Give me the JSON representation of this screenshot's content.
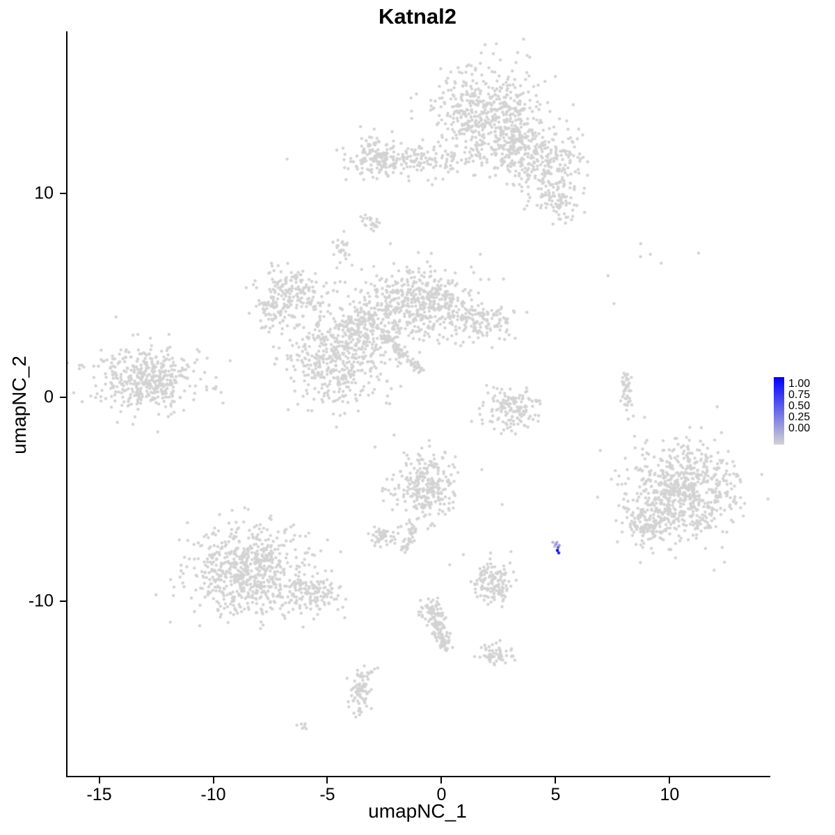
{
  "chart_data": {
    "type": "scatter",
    "title": "Katnal2",
    "xlabel": "umapNC_1",
    "ylabel": "umapNC_2",
    "x_ticks": [
      -15,
      -10,
      -5,
      0,
      5,
      10
    ],
    "y_ticks": [
      10,
      0,
      -10
    ],
    "x_range": [
      -16.45,
      14.35
    ],
    "y_range": [
      -18.55,
      17.95
    ],
    "grid": false,
    "legend_position": "right",
    "point_color_low": "#D3D3D3",
    "point_color_high": "#0000FF",
    "point_radius_px": 2.2,
    "legend": {
      "ticks": [
        "1.00",
        "0.75",
        "0.50",
        "0.25",
        "0.00"
      ]
    },
    "background_clusters": [
      {
        "cx": 1.9,
        "cy": 13.9,
        "sx": 1.15,
        "sy": 1.2,
        "n": 520
      },
      {
        "cx": 3.2,
        "cy": 12.3,
        "sx": 0.7,
        "sy": 0.8,
        "n": 150
      },
      {
        "cx": 4.7,
        "cy": 11.4,
        "sx": 0.75,
        "sy": 0.9,
        "n": 200
      },
      {
        "cx": 5.0,
        "cy": 9.7,
        "sx": 0.45,
        "sy": 0.55,
        "n": 70
      },
      {
        "cx": -1.5,
        "cy": 11.6,
        "sx": 1.5,
        "sy": 0.38,
        "n": 170
      },
      {
        "cx": -2.9,
        "cy": 11.9,
        "sx": 0.45,
        "sy": 0.45,
        "n": 90
      },
      {
        "cx": -3.1,
        "cy": 8.6,
        "sx": 0.25,
        "sy": 0.25,
        "n": 22
      },
      {
        "cx": -4.4,
        "cy": 7.4,
        "sx": 0.25,
        "sy": 0.3,
        "n": 25
      },
      {
        "cx": -0.9,
        "cy": 4.7,
        "sx": 1.05,
        "sy": 0.85,
        "n": 430
      },
      {
        "cx": 1.7,
        "cy": 3.7,
        "sx": 0.75,
        "sy": 0.45,
        "n": 130
      },
      {
        "cx": -6.5,
        "cy": 5.1,
        "sx": 0.7,
        "sy": 0.7,
        "n": 170
      },
      {
        "cx": -7.6,
        "cy": 4.2,
        "sx": 0.4,
        "sy": 0.5,
        "n": 60
      },
      {
        "cx": -3.2,
        "cy": 3.5,
        "sx": 0.85,
        "sy": 0.8,
        "n": 240
      },
      {
        "cx": -4.7,
        "cy": 1.8,
        "sx": 1.0,
        "sy": 1.15,
        "n": 420
      },
      {
        "cx": -12.9,
        "cy": 0.9,
        "sx": 1.1,
        "sy": 0.75,
        "n": 420
      },
      {
        "cx": 3.0,
        "cy": -0.6,
        "sx": 0.6,
        "sy": 0.5,
        "n": 140
      },
      {
        "cx": 8.05,
        "cy": 0.35,
        "sx": 0.12,
        "sy": 0.6,
        "n": 45
      },
      {
        "cx": 8.6,
        "cy": 6.9,
        "sx": 0.9,
        "sy": 0.35,
        "n": 6
      },
      {
        "cx": 10.5,
        "cy": -4.6,
        "sx": 1.15,
        "sy": 1.15,
        "n": 700
      },
      {
        "cx": 9.0,
        "cy": -6.3,
        "sx": 0.55,
        "sy": 0.5,
        "n": 110
      },
      {
        "cx": -0.7,
        "cy": -4.4,
        "sx": 0.75,
        "sy": 0.9,
        "n": 280
      },
      {
        "cx": -2.65,
        "cy": -6.8,
        "sx": 0.3,
        "sy": 0.27,
        "n": 50
      },
      {
        "cx": -8.6,
        "cy": -8.5,
        "sx": 1.25,
        "sy": 1.1,
        "n": 640
      },
      {
        "cx": -5.9,
        "cy": -9.6,
        "sx": 0.7,
        "sy": 0.5,
        "n": 130
      },
      {
        "cx": 2.2,
        "cy": -9.1,
        "sx": 0.42,
        "sy": 0.5,
        "n": 130
      },
      {
        "cx": 2.3,
        "cy": -12.6,
        "sx": 0.35,
        "sy": 0.3,
        "n": 55
      },
      {
        "cx": -3.6,
        "cy": -14.5,
        "sx": 0.25,
        "sy": 0.55,
        "n": 70
      },
      {
        "cx": -6.1,
        "cy": -16.1,
        "sx": 0.18,
        "sy": 0.12,
        "n": 6
      },
      {
        "cx": -0.4,
        "cy": -10.6,
        "sx": 0.3,
        "sy": 0.35,
        "n": 60
      }
    ],
    "line_clusters": [
      {
        "x1": -2.6,
        "y1": 3.0,
        "x2": -0.9,
        "y2": 1.3,
        "n": 90,
        "jitter": 0.12
      },
      {
        "x1": -1.25,
        "y1": -6.2,
        "x2": -1.75,
        "y2": -7.6,
        "n": 40,
        "jitter": 0.1
      },
      {
        "x1": -0.35,
        "y1": -10.9,
        "x2": 0.25,
        "y2": -12.5,
        "n": 70,
        "jitter": 0.15
      },
      {
        "x1": -3.0,
        "y1": -13.3,
        "x2": -3.55,
        "y2": -13.9,
        "n": 12,
        "jitter": 0.1
      }
    ],
    "singles": [
      [
        7.5,
        4.6
      ],
      [
        6.9,
        -2.6
      ],
      [
        2.6,
        -5.25
      ],
      [
        0.3,
        -8.2
      ],
      [
        8.4,
        -1.9
      ],
      [
        -11.2,
        1.6
      ],
      [
        4.1,
        -0.2
      ],
      [
        0.9,
        -7.7
      ],
      [
        -4.6,
        -10.4
      ],
      [
        -4.3,
        -10.8
      ]
    ],
    "expression_points": [
      {
        "x": 4.82,
        "y": -7.1,
        "v": 0.15
      },
      {
        "x": 4.9,
        "y": -7.3,
        "v": 0.1
      },
      {
        "x": 4.95,
        "y": -7.2,
        "v": 0.3
      },
      {
        "x": 5.0,
        "y": -7.1,
        "v": 0.2
      },
      {
        "x": 5.1,
        "y": -7.25,
        "v": 0.25
      },
      {
        "x": 5.05,
        "y": -7.35,
        "v": 0.55
      },
      {
        "x": 5.02,
        "y": -7.5,
        "v": 1.0
      },
      {
        "x": 5.08,
        "y": -7.62,
        "v": 0.9
      }
    ]
  }
}
